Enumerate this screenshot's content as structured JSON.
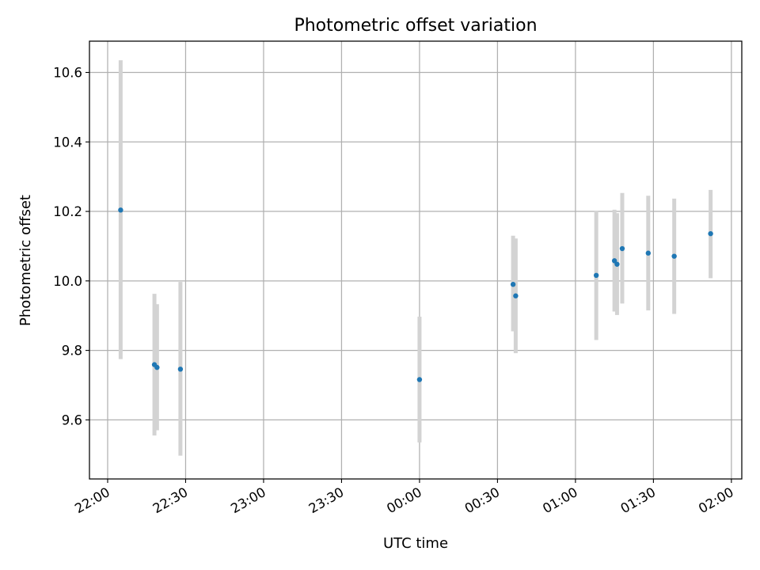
{
  "chart_data": {
    "type": "scatter",
    "title": "Photometric offset variation",
    "xlabel": "UTC time",
    "ylabel": "Photometric offset",
    "x_unit": "time",
    "xlim": [
      "21:53",
      "02:04"
    ],
    "ylim": [
      9.43,
      10.69
    ],
    "x_ticks": [
      "22:00",
      "22:30",
      "23:00",
      "23:30",
      "00:00",
      "00:30",
      "01:00",
      "01:30",
      "02:00"
    ],
    "y_ticks": [
      "9.6",
      "9.8",
      "10.0",
      "10.2",
      "10.4",
      "10.6"
    ],
    "grid": true,
    "legend": "none",
    "marker_color": "#1f77b4",
    "errorbar_color": "#d3d3d3",
    "points": [
      {
        "x": "22:05",
        "y": 10.204,
        "yerr_low": 9.775,
        "yerr_high": 10.635
      },
      {
        "x": "22:18",
        "y": 9.759,
        "yerr_low": 9.555,
        "yerr_high": 9.963
      },
      {
        "x": "22:19",
        "y": 9.751,
        "yerr_low": 9.57,
        "yerr_high": 9.933
      },
      {
        "x": "22:28",
        "y": 9.746,
        "yerr_low": 9.497,
        "yerr_high": 9.997
      },
      {
        "x": "00:00",
        "y": 9.716,
        "yerr_low": 9.535,
        "yerr_high": 9.897
      },
      {
        "x": "00:36",
        "y": 9.99,
        "yerr_low": 9.855,
        "yerr_high": 10.13
      },
      {
        "x": "00:37",
        "y": 9.957,
        "yerr_low": 9.792,
        "yerr_high": 10.122
      },
      {
        "x": "01:08",
        "y": 10.016,
        "yerr_low": 9.83,
        "yerr_high": 10.202
      },
      {
        "x": "01:15",
        "y": 10.058,
        "yerr_low": 9.912,
        "yerr_high": 10.205
      },
      {
        "x": "01:16",
        "y": 10.048,
        "yerr_low": 9.902,
        "yerr_high": 10.195
      },
      {
        "x": "01:18",
        "y": 10.093,
        "yerr_low": 9.935,
        "yerr_high": 10.253
      },
      {
        "x": "01:28",
        "y": 10.08,
        "yerr_low": 9.915,
        "yerr_high": 10.245
      },
      {
        "x": "01:38",
        "y": 10.071,
        "yerr_low": 9.905,
        "yerr_high": 10.237
      },
      {
        "x": "01:52",
        "y": 10.136,
        "yerr_low": 10.008,
        "yerr_high": 10.262
      }
    ]
  }
}
